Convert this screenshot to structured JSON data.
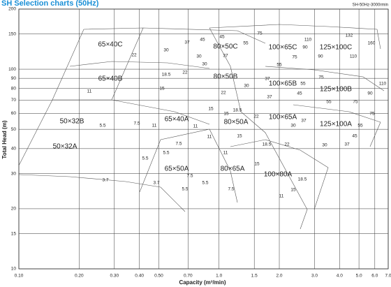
{
  "chart_data": {
    "type": "selection-chart",
    "title": "SH Selection charts (50Hz)",
    "subtitle": "SH-50Hz-3000rmin",
    "x_label": "Capacity (m³/min)",
    "y_label": "Total  Head (m)",
    "log_x": true,
    "log_y": true,
    "grid": true,
    "xlim": [
      0.1,
      7.0
    ],
    "ylim": [
      10,
      200
    ],
    "xticks": [
      {
        "value": 0.1,
        "label": "0.10"
      },
      {
        "value": 0.2,
        "label": "0.20"
      },
      {
        "value": 0.3,
        "label": "0.30"
      },
      {
        "value": 0.4,
        "label": "0.40"
      },
      {
        "value": 0.5,
        "label": "0.50"
      },
      {
        "value": 0.7,
        "label": "0.70"
      },
      {
        "value": 1,
        "label": "1.0"
      },
      1.5,
      {
        "value": 2,
        "label": "2.0"
      },
      {
        "value": 3,
        "label": "3.0"
      },
      {
        "value": 4,
        "label": "4.0"
      },
      {
        "value": 5,
        "label": "5.0"
      },
      {
        "value": 6,
        "label": "6.0"
      },
      {
        "value": 7,
        "label": "7.0"
      }
    ],
    "yticks": [
      10,
      15,
      20,
      30,
      40,
      50,
      60,
      70,
      80,
      90,
      100,
      150,
      200
    ],
    "models": [
      "65×40C",
      "65×40B",
      "50×32B",
      "50×32A",
      "65×40A",
      "65×50A",
      "80×50C",
      "80×50B",
      "80×50A",
      "80×65A",
      "100×65C",
      "100×65B",
      "100×65A",
      "100×80A",
      "125×100C",
      "125×100B",
      "125×100A"
    ],
    "annotations": [
      "37",
      "45",
      "30",
      "22",
      "45",
      "75",
      "55",
      "30",
      "37",
      "30",
      "22",
      "18.5",
      "15",
      "11",
      "55",
      "75",
      "90",
      "110",
      "90",
      "132",
      "160",
      "110",
      "30",
      "37",
      "22",
      "37",
      "45",
      "55",
      "75",
      "55",
      "75",
      "90",
      "110",
      "15",
      "18.5",
      "11",
      "7.5",
      "5.5",
      "11",
      "15",
      "22",
      "30",
      "37",
      "55",
      "45",
      "75",
      "11",
      "15",
      "18.5",
      "22",
      "30",
      "37",
      "7.5",
      "5.5",
      "5.5",
      "11",
      "15",
      "7.5",
      "3.7",
      "3.7",
      "5.5",
      "5.5",
      "7.5",
      "18.5",
      "15",
      "11"
    ]
  }
}
